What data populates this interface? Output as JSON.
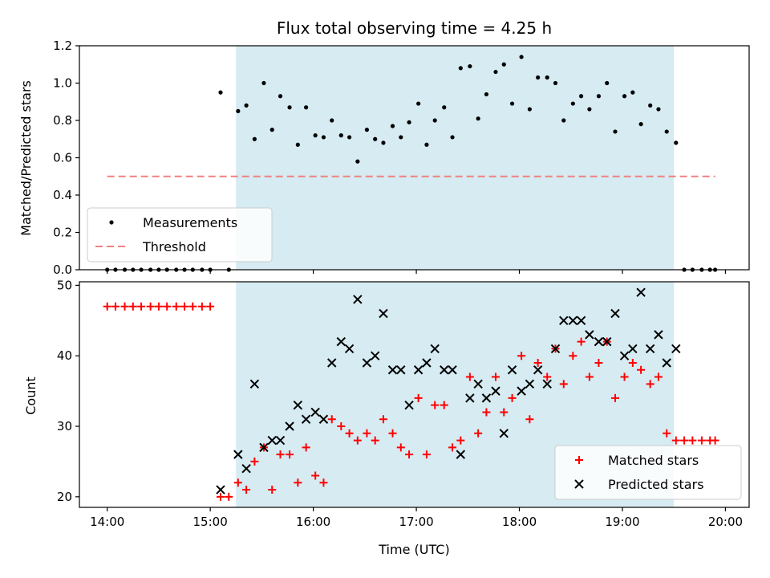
{
  "chart_data": [
    {
      "type": "scatter",
      "title": "Flux total observing time = 4.25 h",
      "xlabel": "",
      "ylabel": "Matched/Predicted stars",
      "xlim": [
        13.73,
        20.23
      ],
      "ylim": [
        0,
        1.2
      ],
      "x_tick_values": [
        14,
        15,
        16,
        17,
        18,
        19,
        20
      ],
      "y_ticks": [
        "0.0",
        "0.2",
        "0.4",
        "0.6",
        "0.8",
        "1.0",
        "1.2"
      ],
      "y_tick_values": [
        0,
        0.2,
        0.4,
        0.6,
        0.8,
        1.0,
        1.2
      ],
      "observing_window": [
        15.25,
        19.5
      ],
      "window_color": "#add8e6",
      "legend": {
        "placement": "lower-left",
        "entries": [
          "Measurements",
          "Threshold"
        ]
      },
      "series": [
        {
          "name": "Measurements",
          "marker": "dot",
          "color": "#000000",
          "points": [
            [
              14.0,
              0.0
            ],
            [
              14.08,
              0.0
            ],
            [
              14.17,
              0.0
            ],
            [
              14.25,
              0.0
            ],
            [
              14.33,
              0.0
            ],
            [
              14.42,
              0.0
            ],
            [
              14.5,
              0.0
            ],
            [
              14.58,
              0.0
            ],
            [
              14.67,
              0.0
            ],
            [
              14.75,
              0.0
            ],
            [
              14.83,
              0.0
            ],
            [
              14.92,
              0.0
            ],
            [
              15.0,
              0.0
            ],
            [
              15.1,
              0.95
            ],
            [
              15.18,
              0.0
            ],
            [
              15.27,
              0.85
            ],
            [
              15.35,
              0.88
            ],
            [
              15.43,
              0.7
            ],
            [
              15.52,
              1.0
            ],
            [
              15.6,
              0.75
            ],
            [
              15.68,
              0.93
            ],
            [
              15.77,
              0.87
            ],
            [
              15.85,
              0.67
            ],
            [
              15.93,
              0.87
            ],
            [
              16.02,
              0.72
            ],
            [
              16.1,
              0.71
            ],
            [
              16.18,
              0.8
            ],
            [
              16.27,
              0.72
            ],
            [
              16.35,
              0.71
            ],
            [
              16.43,
              0.58
            ],
            [
              16.52,
              0.75
            ],
            [
              16.6,
              0.7
            ],
            [
              16.68,
              0.68
            ],
            [
              16.77,
              0.77
            ],
            [
              16.85,
              0.71
            ],
            [
              16.93,
              0.79
            ],
            [
              17.02,
              0.89
            ],
            [
              17.1,
              0.67
            ],
            [
              17.18,
              0.8
            ],
            [
              17.27,
              0.87
            ],
            [
              17.35,
              0.71
            ],
            [
              17.43,
              1.08
            ],
            [
              17.52,
              1.09
            ],
            [
              17.6,
              0.81
            ],
            [
              17.68,
              0.94
            ],
            [
              17.77,
              1.06
            ],
            [
              17.85,
              1.1
            ],
            [
              17.93,
              0.89
            ],
            [
              18.02,
              1.14
            ],
            [
              18.1,
              0.86
            ],
            [
              18.18,
              1.03
            ],
            [
              18.27,
              1.03
            ],
            [
              18.35,
              1.0
            ],
            [
              18.43,
              0.8
            ],
            [
              18.52,
              0.89
            ],
            [
              18.6,
              0.93
            ],
            [
              18.68,
              0.86
            ],
            [
              18.77,
              0.93
            ],
            [
              18.85,
              1.0
            ],
            [
              18.93,
              0.74
            ],
            [
              19.02,
              0.93
            ],
            [
              19.1,
              0.95
            ],
            [
              19.18,
              0.78
            ],
            [
              19.27,
              0.88
            ],
            [
              19.35,
              0.86
            ],
            [
              19.43,
              0.74
            ],
            [
              19.52,
              0.68
            ],
            [
              19.6,
              0.0
            ],
            [
              19.68,
              0.0
            ],
            [
              19.77,
              0.0
            ],
            [
              19.85,
              0.0
            ],
            [
              19.9,
              0.0
            ]
          ]
        },
        {
          "name": "Threshold",
          "marker": "dashed-line",
          "color": "#f08080",
          "points": [
            [
              14.0,
              0.5
            ],
            [
              19.9,
              0.5
            ]
          ]
        }
      ]
    },
    {
      "type": "scatter",
      "title": "",
      "xlabel": "Time (UTC)",
      "ylabel": "Count",
      "xlim": [
        13.73,
        20.23
      ],
      "ylim": [
        18.5,
        50.5
      ],
      "x_ticks": [
        "14:00",
        "15:00",
        "16:00",
        "17:00",
        "18:00",
        "19:00",
        "20:00"
      ],
      "x_tick_values": [
        14,
        15,
        16,
        17,
        18,
        19,
        20
      ],
      "y_ticks": [
        "20",
        "30",
        "40",
        "50"
      ],
      "y_tick_values": [
        20,
        30,
        40,
        50
      ],
      "observing_window": [
        15.25,
        19.5
      ],
      "window_color": "#add8e6",
      "legend": {
        "placement": "lower-right",
        "entries": [
          "Matched stars",
          "Predicted stars"
        ]
      },
      "series": [
        {
          "name": "Matched stars",
          "marker": "plus",
          "color": "#ff0000",
          "points": [
            [
              14.0,
              47
            ],
            [
              14.08,
              47
            ],
            [
              14.17,
              47
            ],
            [
              14.25,
              47
            ],
            [
              14.33,
              47
            ],
            [
              14.42,
              47
            ],
            [
              14.5,
              47
            ],
            [
              14.58,
              47
            ],
            [
              14.67,
              47
            ],
            [
              14.75,
              47
            ],
            [
              14.83,
              47
            ],
            [
              14.92,
              47
            ],
            [
              15.0,
              47
            ],
            [
              15.1,
              20
            ],
            [
              15.18,
              20
            ],
            [
              15.27,
              22
            ],
            [
              15.35,
              21
            ],
            [
              15.43,
              25
            ],
            [
              15.52,
              27
            ],
            [
              15.6,
              21
            ],
            [
              15.68,
              26
            ],
            [
              15.77,
              26
            ],
            [
              15.85,
              22
            ],
            [
              15.93,
              27
            ],
            [
              16.02,
              23
            ],
            [
              16.1,
              22
            ],
            [
              16.18,
              31
            ],
            [
              16.27,
              30
            ],
            [
              16.35,
              29
            ],
            [
              16.43,
              28
            ],
            [
              16.52,
              29
            ],
            [
              16.6,
              28
            ],
            [
              16.68,
              31
            ],
            [
              16.77,
              29
            ],
            [
              16.85,
              27
            ],
            [
              16.93,
              26
            ],
            [
              17.02,
              34
            ],
            [
              17.1,
              26
            ],
            [
              17.18,
              33
            ],
            [
              17.27,
              33
            ],
            [
              17.35,
              27
            ],
            [
              17.43,
              28
            ],
            [
              17.52,
              37
            ],
            [
              17.6,
              29
            ],
            [
              17.68,
              32
            ],
            [
              17.77,
              37
            ],
            [
              17.85,
              32
            ],
            [
              17.93,
              34
            ],
            [
              18.02,
              40
            ],
            [
              18.1,
              31
            ],
            [
              18.18,
              39
            ],
            [
              18.27,
              37
            ],
            [
              18.35,
              41
            ],
            [
              18.43,
              36
            ],
            [
              18.52,
              40
            ],
            [
              18.6,
              42
            ],
            [
              18.68,
              37
            ],
            [
              18.77,
              39
            ],
            [
              18.85,
              42
            ],
            [
              18.93,
              34
            ],
            [
              19.02,
              37
            ],
            [
              19.1,
              39
            ],
            [
              19.18,
              38
            ],
            [
              19.27,
              36
            ],
            [
              19.35,
              37
            ],
            [
              19.43,
              29
            ],
            [
              19.52,
              28
            ],
            [
              19.6,
              28
            ],
            [
              19.68,
              28
            ],
            [
              19.77,
              28
            ],
            [
              19.85,
              28
            ],
            [
              19.9,
              28
            ]
          ]
        },
        {
          "name": "Predicted stars",
          "marker": "x",
          "color": "#000000",
          "points": [
            [
              15.1,
              21
            ],
            [
              15.27,
              26
            ],
            [
              15.35,
              24
            ],
            [
              15.43,
              36
            ],
            [
              15.52,
              27
            ],
            [
              15.6,
              28
            ],
            [
              15.68,
              28
            ],
            [
              15.77,
              30
            ],
            [
              15.85,
              33
            ],
            [
              15.93,
              31
            ],
            [
              16.02,
              32
            ],
            [
              16.1,
              31
            ],
            [
              16.18,
              39
            ],
            [
              16.27,
              42
            ],
            [
              16.35,
              41
            ],
            [
              16.43,
              48
            ],
            [
              16.52,
              39
            ],
            [
              16.6,
              40
            ],
            [
              16.68,
              46
            ],
            [
              16.77,
              38
            ],
            [
              16.85,
              38
            ],
            [
              16.93,
              33
            ],
            [
              17.02,
              38
            ],
            [
              17.1,
              39
            ],
            [
              17.18,
              41
            ],
            [
              17.27,
              38
            ],
            [
              17.35,
              38
            ],
            [
              17.43,
              26
            ],
            [
              17.52,
              34
            ],
            [
              17.6,
              36
            ],
            [
              17.68,
              34
            ],
            [
              17.77,
              35
            ],
            [
              17.85,
              29
            ],
            [
              17.93,
              38
            ],
            [
              18.02,
              35
            ],
            [
              18.1,
              36
            ],
            [
              18.18,
              38
            ],
            [
              18.27,
              36
            ],
            [
              18.35,
              41
            ],
            [
              18.43,
              45
            ],
            [
              18.52,
              45
            ],
            [
              18.6,
              45
            ],
            [
              18.68,
              43
            ],
            [
              18.77,
              42
            ],
            [
              18.85,
              42
            ],
            [
              18.93,
              46
            ],
            [
              19.02,
              40
            ],
            [
              19.1,
              41
            ],
            [
              19.18,
              49
            ],
            [
              19.27,
              41
            ],
            [
              19.35,
              43
            ],
            [
              19.43,
              39
            ],
            [
              19.52,
              41
            ]
          ]
        }
      ]
    }
  ]
}
